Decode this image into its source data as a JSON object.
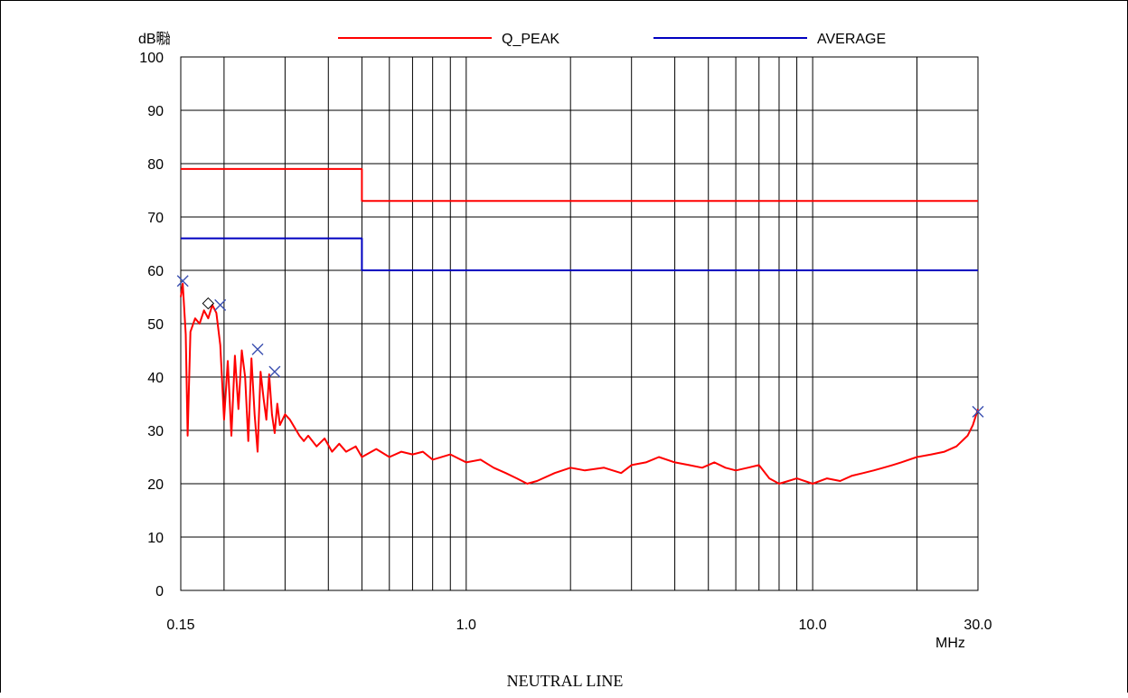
{
  "caption": "NEUTRAL LINE",
  "chart_data": {
    "type": "line",
    "title": "",
    "xlabel": "MHz",
    "ylabel": "dB㍾",
    "xscale": "log",
    "xlim": [
      0.15,
      30.0
    ],
    "ylim": [
      0,
      100
    ],
    "grid": true,
    "legend_placement": "top",
    "x_tick_labels": [
      "0.15",
      "1.0",
      "10.0",
      "30.0"
    ],
    "y_tick_labels": [
      "0",
      "10",
      "20",
      "30",
      "40",
      "50",
      "60",
      "70",
      "80",
      "90",
      "100"
    ],
    "series": [
      {
        "name": "Q_PEAK",
        "color": "#ff0000",
        "role": "limit",
        "x": [
          0.15,
          0.5,
          0.5,
          30.0
        ],
        "y": [
          79,
          79,
          73,
          73
        ]
      },
      {
        "name": "AVERAGE",
        "color": "#0000c0",
        "role": "limit",
        "x": [
          0.15,
          0.5,
          0.5,
          30.0
        ],
        "y": [
          66,
          66,
          60,
          60
        ]
      },
      {
        "name": "",
        "color": "#ff0000",
        "role": "measurement",
        "x": [
          0.15,
          0.152,
          0.155,
          0.157,
          0.16,
          0.165,
          0.17,
          0.175,
          0.18,
          0.185,
          0.19,
          0.195,
          0.2,
          0.205,
          0.21,
          0.215,
          0.22,
          0.225,
          0.23,
          0.235,
          0.24,
          0.245,
          0.25,
          0.255,
          0.26,
          0.265,
          0.27,
          0.275,
          0.28,
          0.285,
          0.29,
          0.3,
          0.31,
          0.32,
          0.33,
          0.34,
          0.35,
          0.37,
          0.39,
          0.41,
          0.43,
          0.45,
          0.48,
          0.5,
          0.55,
          0.6,
          0.65,
          0.7,
          0.75,
          0.8,
          0.9,
          1.0,
          1.1,
          1.2,
          1.3,
          1.4,
          1.5,
          1.6,
          1.8,
          2.0,
          2.2,
          2.5,
          2.8,
          3.0,
          3.3,
          3.6,
          4.0,
          4.4,
          4.8,
          5.2,
          5.6,
          6.0,
          6.5,
          7.0,
          7.5,
          8.0,
          8.5,
          9.0,
          10.0,
          11.0,
          12.0,
          13.0,
          14.0,
          15.0,
          16.0,
          17.0,
          18.0,
          20.0,
          22.0,
          24.0,
          26.0,
          28.0,
          29.0,
          30.0
        ],
        "y": [
          55.0,
          57.5,
          48.0,
          29.0,
          48.5,
          51.0,
          50.0,
          52.5,
          51.0,
          53.5,
          52.0,
          46.0,
          32.0,
          43.0,
          29.0,
          44.0,
          34.0,
          45.0,
          40.0,
          28.0,
          43.5,
          33.0,
          26.0,
          41.0,
          36.0,
          32.0,
          40.5,
          33.0,
          29.5,
          35.0,
          31.0,
          33.0,
          32.0,
          30.5,
          29.0,
          28.0,
          29.0,
          27.0,
          28.5,
          26.0,
          27.5,
          26.0,
          27.0,
          25.0,
          26.5,
          25.0,
          26.0,
          25.5,
          26.0,
          24.5,
          25.5,
          24.0,
          24.5,
          23.0,
          22.0,
          21.0,
          20.0,
          20.5,
          22.0,
          23.0,
          22.5,
          23.0,
          22.0,
          23.5,
          24.0,
          25.0,
          24.0,
          23.5,
          23.0,
          24.0,
          23.0,
          22.5,
          23.0,
          23.5,
          21.0,
          20.0,
          20.5,
          21.0,
          20.0,
          21.0,
          20.5,
          21.5,
          22.0,
          22.5,
          23.0,
          23.5,
          24.0,
          25.0,
          25.5,
          26.0,
          27.0,
          29.0,
          31.0,
          34.0
        ]
      }
    ],
    "markers": [
      {
        "x": 0.152,
        "y": 58.0,
        "shape": "x"
      },
      {
        "x": 0.18,
        "y": 53.8,
        "shape": "diamond"
      },
      {
        "x": 0.195,
        "y": 53.5,
        "shape": "x"
      },
      {
        "x": 0.25,
        "y": 45.2,
        "shape": "x"
      },
      {
        "x": 0.28,
        "y": 41.0,
        "shape": "x"
      },
      {
        "x": 30.0,
        "y": 33.5,
        "shape": "x"
      }
    ]
  }
}
